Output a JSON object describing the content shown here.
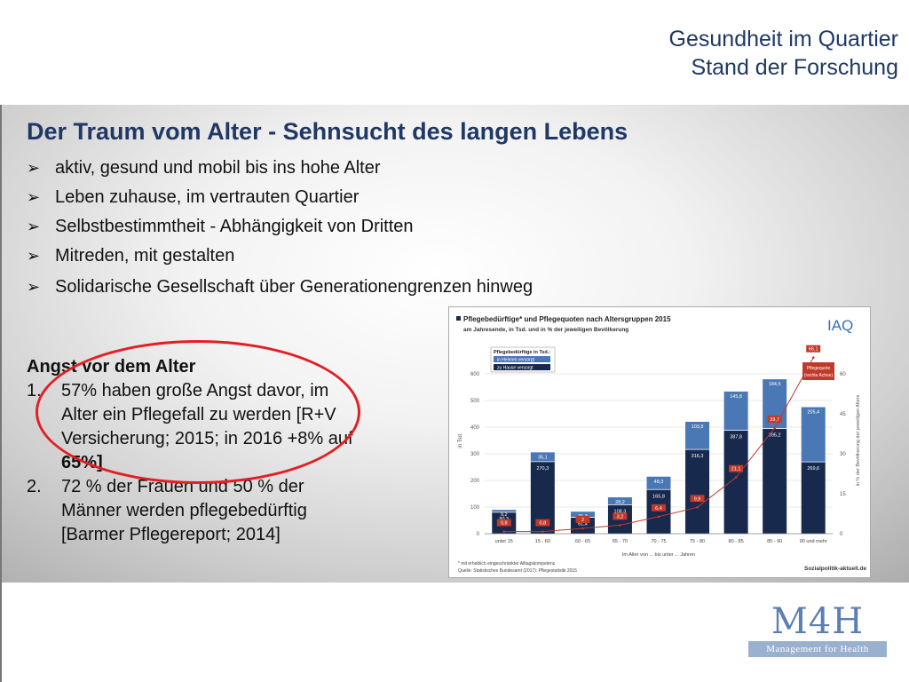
{
  "header": {
    "line1": "Gesundheit im Quartier",
    "line2": "Stand der Forschung"
  },
  "main": {
    "heading": "Der Traum vom Alter - Sehnsucht des langen Lebens",
    "bullets": [
      "aktiv, gesund und mobil bis ins hohe Alter",
      "Leben zuhause, im vertrauten Quartier",
      "Selbstbestimmtheit - Abhängigkeit von Dritten",
      "Mitreden, mit gestalten",
      "Solidarische Gesellschaft über Generationengrenzen hinweg"
    ],
    "bullet_icon": "arrow-right-icon"
  },
  "fear": {
    "title": "Angst vor dem Alter",
    "items": [
      {
        "num": "1.",
        "text_a": "57% haben große Angst davor, im Alter ein Pflegefall zu werden [R+V Versicherung; 2015; in 2016 +8% auf ",
        "text_b": "65%]"
      },
      {
        "num": "2.",
        "text_a": "72 % der Frauen und 50 % der Männer werden pflegebedürftig [Barmer Pflegereport; 2014]",
        "text_b": ""
      }
    ],
    "highlight_color": "#e31e24"
  },
  "chart_data": {
    "type": "bar",
    "title": "Pflegebedürftige* und Pflegequoten nach Altersgruppen 2015",
    "subtitle": "am Jahresende, in Tsd. und in % der jeweiligen Bevölkerung",
    "brand": "IAQ",
    "ylabel": "in Tsd.",
    "ylabel_right": "in % der Bevölkerung der jeweiligen Alters",
    "xlabel": "Im Alter von ... bis unter ... Jahren",
    "ylim": [
      0,
      700
    ],
    "y2lim": [
      0,
      70
    ],
    "yticks": [
      0,
      100,
      200,
      300,
      400,
      500,
      600
    ],
    "y2ticks": [
      0,
      15,
      30,
      45,
      60
    ],
    "categories": [
      "unter 15",
      "15 - 60",
      "60 - 65",
      "65 - 70",
      "70 - 75",
      "75 - 80",
      "80 - 85",
      "85 - 90",
      "90 und mehr"
    ],
    "series": [
      {
        "name": "in Heimen versorgt",
        "values": [
          9.2,
          35.1,
          21.3,
          28.2,
          48.3,
          103.8,
          145.8,
          184.5,
          205.4
        ],
        "color": "#4a78b5"
      },
      {
        "name": "zu Hause versorgt",
        "values": [
          80.3,
          270.3,
          61.4,
          108.3,
          165.8,
          316.3,
          387.8,
          395.2,
          269.6
        ],
        "color": "#17294d"
      },
      {
        "name": "Pflegequote (rechte Achse)",
        "values": [
          0.8,
          0.8,
          2.0,
          3.2,
          6.4,
          9.9,
          21.1,
          39.7,
          66.1
        ],
        "color": "#c0392b"
      }
    ],
    "footnote1": "* mit erheblich eingeschränkter Alltagskompetenz",
    "footnote2": "Quelle: Statistisches Bundesamt (2017): Pflegestatistik 2015",
    "legend_title": "Pflegebedürftige in Tsd.:",
    "source_logo": "Sozialpolitik-aktuell.de"
  },
  "logo": {
    "mark": "M4H",
    "tagline": "Management for Health"
  }
}
